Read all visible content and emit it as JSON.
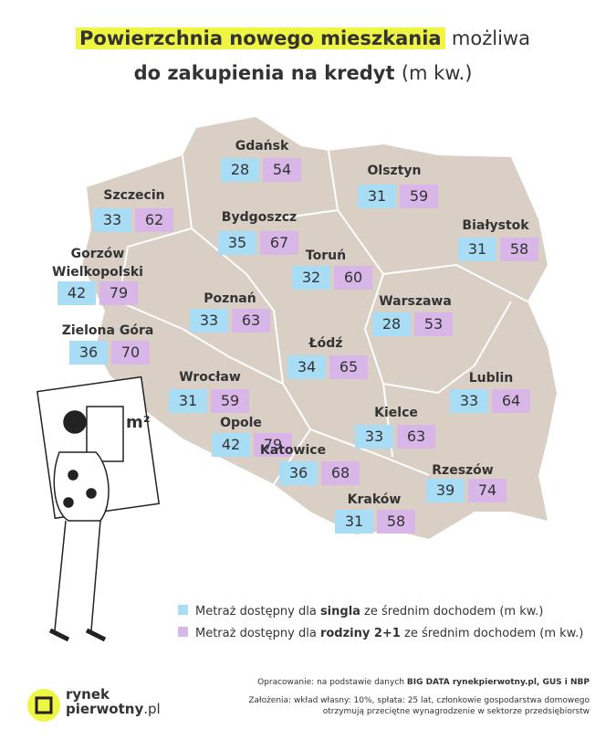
{
  "title": {
    "highlight": "Powierzchnia nowego mieszkania",
    "rest": "możliwa",
    "line2": "do zakupienia na kredyt",
    "unit": "(m kw.)"
  },
  "cities": [
    {
      "name": "Gdańsk",
      "single": 28,
      "family": 54
    },
    {
      "name": "Szczecin",
      "single": 33,
      "family": 62
    },
    {
      "name": "Olsztyn",
      "single": 31,
      "family": 59
    },
    {
      "name": "Bydgoszcz",
      "single": 35,
      "family": 67
    },
    {
      "name": "Białystok",
      "single": 31,
      "family": 58
    },
    {
      "name": "Gorzów Wielkopolski",
      "single": 42,
      "family": 79
    },
    {
      "name": "Toruń",
      "single": 32,
      "family": 60
    },
    {
      "name": "Poznań",
      "single": 33,
      "family": 63
    },
    {
      "name": "Warszawa",
      "single": 28,
      "family": 53
    },
    {
      "name": "Zielona Góra",
      "single": 36,
      "family": 70
    },
    {
      "name": "Łódź",
      "single": 34,
      "family": 65
    },
    {
      "name": "Wrocław",
      "single": 31,
      "family": 59
    },
    {
      "name": "Lublin",
      "single": 33,
      "family": 64
    },
    {
      "name": "Kielce",
      "single": 33,
      "family": 63
    },
    {
      "name": "Opole",
      "single": 42,
      "family": 79
    },
    {
      "name": "Katowice",
      "single": 36,
      "family": 68
    },
    {
      "name": "Rzeszów",
      "single": 39,
      "family": 74
    },
    {
      "name": "Kraków",
      "single": 31,
      "family": 58
    }
  ],
  "legend": [
    {
      "prefix": "Metraż dostępny dla ",
      "bold": "singla",
      "suffix": " ze średnim dochodem (m kw.)",
      "color": "#a9dcf5"
    },
    {
      "prefix": "Metraż dostępny dla ",
      "bold": "rodziny 2+1",
      "suffix": " ze średnim dochodem (m kw.)",
      "color": "#d8b6e8"
    }
  ],
  "illustration_label": "m²",
  "footer": {
    "source_prefix": "Opracowanie: na podstawie danych ",
    "source_bold": "BIG DATA rynekpierwotny.pl, GUS i NBP",
    "assumptions_1": "Założenia: wkład własny: 10%, spłata: 25 lat, członkowie gospodarstwa domowego",
    "assumptions_2": "otrzymują przeciętne wynagrodzenie w sektorze przedsiębiorstw"
  },
  "logo": {
    "line1": "rynek",
    "line2": "pierwotny",
    "suffix": ".pl"
  }
}
